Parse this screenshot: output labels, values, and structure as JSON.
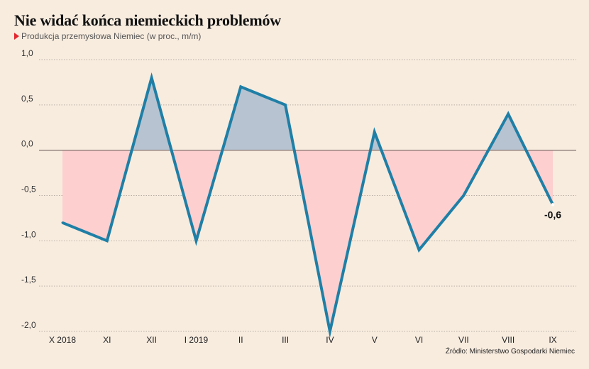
{
  "header": {
    "title": "Nie widać końca niemieckich problemów",
    "subtitle": "Produkcja przemysłowa Niemiec (w proc., m/m)"
  },
  "footer": {
    "source": "Źródło: Ministerstwo Gospodarki Niemiec"
  },
  "colors": {
    "line": "#1f7fa6",
    "positive_fill": "#b7c3d1",
    "negative_fill": "#fdcfcf",
    "zero_line": "#8a7a74",
    "grid": "#b9aea3",
    "accent_marker": "#e3262f"
  },
  "chart_data": {
    "type": "line",
    "title": "Nie widać końca niemieckich problemów",
    "subtitle": "Produkcja przemysłowa Niemiec (w proc., m/m)",
    "categories": [
      "X 2018",
      "XI",
      "XII",
      "I 2019",
      "II",
      "III",
      "IV",
      "V",
      "VI",
      "VII",
      "VIII",
      "IX"
    ],
    "series": [
      {
        "values": [
          -0.8,
          -1.0,
          0.8,
          -1.0,
          0.7,
          0.5,
          -2.0,
          0.2,
          -1.1,
          -0.5,
          0.4,
          -0.6
        ]
      }
    ],
    "ylim": [
      -2.0,
      1.0
    ],
    "yticks": [
      1.0,
      0.5,
      0.0,
      -0.5,
      -1.0,
      -1.5,
      -2.0
    ],
    "ytick_labels": [
      "1,0",
      "0,5",
      "0,0",
      "-0,5",
      "-1,0",
      "-1,5",
      "-2,0"
    ],
    "grid": true,
    "area_fill_to_zero": true,
    "annotations": [
      {
        "category": "IX",
        "value": -0.6,
        "text": "-0,6"
      }
    ],
    "xlabel": "",
    "ylabel": ""
  }
}
